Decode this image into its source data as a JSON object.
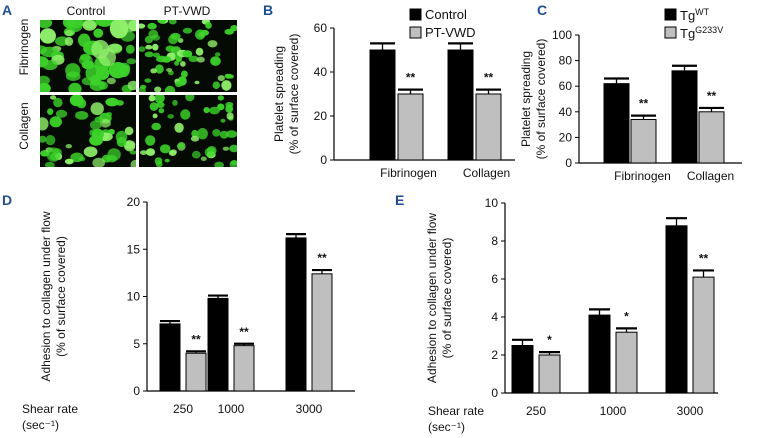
{
  "panels": {
    "A": "A",
    "B": "B",
    "C": "C",
    "D": "D",
    "E": "E"
  },
  "microscopy": {
    "columns": [
      "Control",
      "PT-VWD"
    ],
    "rows": [
      "Fibrinogen",
      "Collagen"
    ],
    "colors": {
      "cell": "#3cd22a",
      "cell_light": "#8ff06a",
      "background": "#050a05"
    }
  },
  "chart_data": [
    {
      "id": "B",
      "type": "bar",
      "categories": [
        "Fibrinogen",
        "Collagen"
      ],
      "series": [
        {
          "name": "Control",
          "values": [
            50,
            50
          ],
          "errors": [
            3,
            3
          ],
          "color": "#000000"
        },
        {
          "name": "PT-VWD",
          "values": [
            30,
            30
          ],
          "errors": [
            2,
            2
          ],
          "color": "#bfbfbf",
          "sig": [
            "**",
            "**"
          ]
        }
      ],
      "ylabel_lines": [
        "Platelet spreading",
        "(% of surface covered)"
      ],
      "ylim": [
        0,
        60
      ],
      "yticks": [
        0,
        20,
        40,
        60
      ],
      "legend": "top"
    },
    {
      "id": "C",
      "type": "bar",
      "categories": [
        "Fibrinogen",
        "Collagen"
      ],
      "series": [
        {
          "name": "Tg",
          "sup": "WT",
          "values": [
            62,
            72
          ],
          "errors": [
            4,
            4
          ],
          "color": "#000000"
        },
        {
          "name": "Tg",
          "sup": "G233V",
          "values": [
            34,
            40
          ],
          "errors": [
            3,
            3
          ],
          "color": "#bfbfbf",
          "sig": [
            "**",
            "**"
          ]
        }
      ],
      "ylabel_lines": [
        "Platelet spreading",
        "(% of surface covered)"
      ],
      "ylim": [
        0,
        100
      ],
      "yticks": [
        0,
        20,
        40,
        60,
        80,
        100
      ],
      "legend": "top-right"
    },
    {
      "id": "D",
      "type": "bar",
      "categories": [
        "250",
        "1000",
        "3000"
      ],
      "series": [
        {
          "name": "Control",
          "values": [
            7.1,
            9.8,
            16.2
          ],
          "errors": [
            0.3,
            0.3,
            0.4
          ],
          "color": "#000000"
        },
        {
          "name": "PT-VWD",
          "values": [
            4.0,
            4.8,
            12.4
          ],
          "errors": [
            0.2,
            0.2,
            0.4
          ],
          "color": "#bfbfbf",
          "sig": [
            "**",
            "**",
            "**"
          ]
        }
      ],
      "xlabel_lines": [
        "Shear rate",
        "(sec⁻¹)"
      ],
      "ylabel_lines": [
        "Adhesion to collagen under flow",
        "(% of surface covered)"
      ],
      "ylim": [
        0,
        20
      ],
      "yticks": [
        0,
        5,
        10,
        15,
        20
      ]
    },
    {
      "id": "E",
      "type": "bar",
      "categories": [
        "250",
        "1000",
        "3000"
      ],
      "series": [
        {
          "name": "Tg WT",
          "values": [
            2.5,
            4.1,
            8.8
          ],
          "errors": [
            0.3,
            0.3,
            0.4
          ],
          "color": "#000000"
        },
        {
          "name": "Tg G233V",
          "values": [
            2.0,
            3.2,
            6.1
          ],
          "errors": [
            0.15,
            0.2,
            0.35
          ],
          "color": "#bfbfbf",
          "sig": [
            "*",
            "*",
            "**"
          ]
        }
      ],
      "xlabel_lines": [
        "Shear rate",
        "(sec⁻¹)"
      ],
      "ylabel_lines": [
        "Adhesion to collagen under flow",
        "(% of surface covered)"
      ],
      "ylim": [
        0,
        10
      ],
      "yticks": [
        0,
        2,
        4,
        6,
        8,
        10
      ]
    }
  ]
}
